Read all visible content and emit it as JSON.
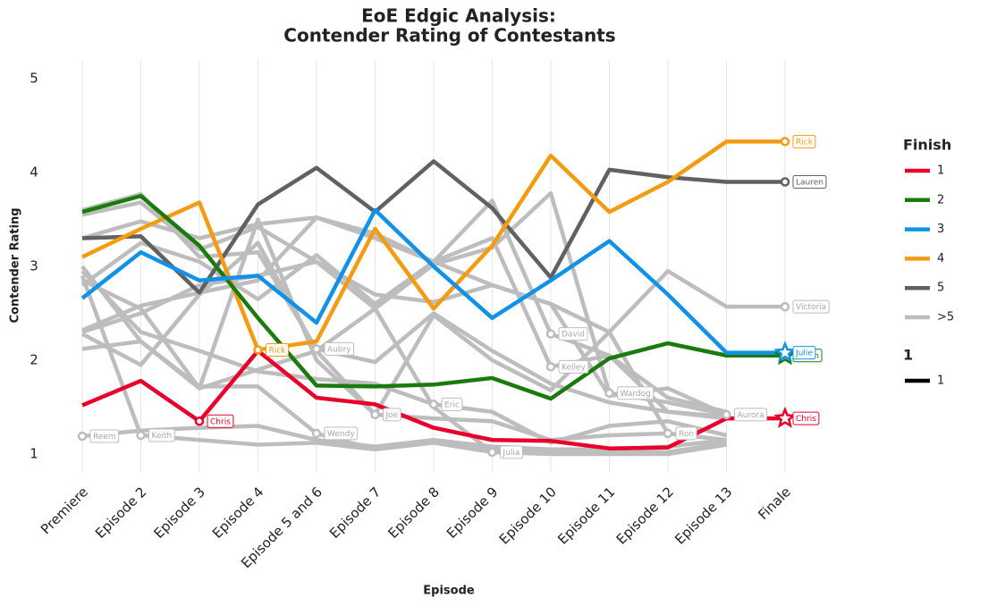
{
  "chart_data": {
    "type": "line",
    "title": [
      "EoE Edgic Analysis:",
      "Contender Rating of Contestants"
    ],
    "x_label": "Episode",
    "y_label": "Contender Rating",
    "categories": [
      "Premiere",
      "Episode 2",
      "Episode 3",
      "Episode 4",
      "Episode 5 and 6",
      "Episode 7",
      "Episode 8",
      "Episode 9",
      "Episode 10",
      "Episode 11",
      "Episode 12",
      "Episode 13",
      "Finale"
    ],
    "ylim": [
      0.8,
      5.2
    ],
    "yticks": [
      1,
      2,
      3,
      4,
      5
    ],
    "grid": true,
    "series": [
      {
        "name": "Reem",
        "color": "#bdbdbd",
        "values": [
          1.19,
          1.25,
          1.28,
          1.3,
          1.15,
          1.08,
          1.15,
          1.08,
          1.05,
          1.05,
          1.08,
          1.15,
          null
        ],
        "labels": [
          "Reem",
          null,
          null,
          null,
          null,
          null,
          null,
          null,
          null,
          null,
          null,
          null,
          null
        ]
      },
      {
        "name": "Keith",
        "color": "#bdbdbd",
        "values": [
          2.9,
          1.2,
          1.15,
          1.1,
          1.12,
          1.05,
          1.15,
          1.05,
          1.03,
          1.03,
          1.02,
          1.1,
          null
        ],
        "labels": [
          null,
          "Keith",
          null,
          null,
          null,
          null,
          null,
          null,
          null,
          null,
          null,
          null,
          null
        ]
      },
      {
        "name": "Aubry",
        "color": "#bdbdbd",
        "values": [
          3.6,
          3.77,
          3.1,
          3.15,
          2.12,
          1.98,
          2.5,
          2.1,
          1.75,
          1.55,
          1.45,
          1.38,
          null
        ],
        "labels": [
          null,
          null,
          null,
          null,
          "Aubry",
          null,
          null,
          null,
          null,
          null,
          null,
          null,
          null
        ]
      },
      {
        "name": "Wendy",
        "color": "#bdbdbd",
        "values": [
          3.0,
          2.2,
          1.72,
          1.72,
          1.22,
          1.05,
          1.12,
          1.02,
          1.02,
          1.02,
          1.02,
          1.12,
          null
        ],
        "labels": [
          null,
          null,
          null,
          null,
          "Wendy",
          null,
          null,
          null,
          null,
          null,
          null,
          null,
          null
        ]
      },
      {
        "name": "Joe",
        "color": "#bdbdbd",
        "values": [
          2.85,
          2.55,
          1.7,
          3.5,
          2.0,
          1.42,
          1.38,
          1.35,
          1.15,
          1.2,
          1.22,
          1.15,
          null
        ],
        "labels": [
          null,
          null,
          null,
          null,
          null,
          "Joe",
          null,
          null,
          null,
          null,
          null,
          null,
          null
        ]
      },
      {
        "name": "Eric",
        "color": "#bdbdbd",
        "values": [
          2.95,
          2.3,
          2.1,
          1.88,
          1.8,
          1.75,
          1.53,
          1.45,
          1.12,
          1.3,
          1.35,
          1.2,
          null
        ],
        "labels": [
          null,
          null,
          null,
          null,
          null,
          null,
          "Eric",
          null,
          null,
          null,
          null,
          null,
          null
        ]
      },
      {
        "name": "Julia",
        "color": "#bdbdbd",
        "values": [
          2.12,
          2.2,
          1.7,
          1.9,
          2.1,
          2.55,
          1.5,
          1.02,
          1.0,
          1.0,
          1.0,
          1.1,
          null
        ],
        "labels": [
          null,
          null,
          null,
          null,
          null,
          null,
          null,
          "Julia",
          null,
          null,
          null,
          null,
          null
        ]
      },
      {
        "name": "David",
        "color": "#bdbdbd",
        "values": [
          3.3,
          3.48,
          3.3,
          3.45,
          3.52,
          3.35,
          3.05,
          3.7,
          2.28,
          2.05,
          1.45,
          1.4,
          null
        ],
        "labels": [
          null,
          null,
          null,
          null,
          null,
          null,
          null,
          null,
          "David",
          null,
          null,
          null,
          null
        ]
      },
      {
        "name": "Kelley",
        "color": "#bdbdbd",
        "values": [
          2.8,
          3.25,
          3.05,
          2.65,
          3.12,
          2.6,
          3.05,
          3.3,
          1.93,
          2.05,
          1.6,
          1.45,
          null
        ],
        "labels": [
          null,
          null,
          null,
          null,
          null,
          null,
          null,
          null,
          "Kelley",
          null,
          null,
          null,
          null
        ]
      },
      {
        "name": "Wardog",
        "color": "#bdbdbd",
        "values": [
          3.55,
          3.68,
          3.18,
          3.42,
          3.05,
          2.55,
          3.02,
          3.2,
          3.78,
          1.65,
          1.55,
          1.42,
          null
        ],
        "labels": [
          null,
          null,
          null,
          null,
          null,
          null,
          null,
          null,
          null,
          "Wardog",
          null,
          null,
          null
        ]
      },
      {
        "name": "Ron",
        "color": "#bdbdbd",
        "values": [
          2.28,
          1.95,
          2.7,
          3.25,
          2.1,
          1.42,
          2.48,
          2.0,
          1.68,
          2.3,
          1.22,
          1.15,
          null
        ],
        "labels": [
          null,
          null,
          null,
          null,
          null,
          null,
          null,
          null,
          null,
          null,
          "Ron",
          null,
          null
        ]
      },
      {
        "name": "Aurora",
        "color": "#bdbdbd",
        "values": [
          2.3,
          2.5,
          2.8,
          2.9,
          3.05,
          2.7,
          2.62,
          2.8,
          2.6,
          1.62,
          1.7,
          1.42,
          null
        ],
        "labels": [
          null,
          null,
          null,
          null,
          null,
          null,
          null,
          null,
          null,
          null,
          null,
          "Aurora",
          null
        ]
      },
      {
        "name": "Victoria",
        "color": "#bdbdbd",
        "values": [
          2.32,
          2.58,
          2.72,
          2.85,
          3.52,
          3.3,
          3.05,
          2.8,
          2.6,
          2.3,
          2.95,
          2.57,
          2.57
        ],
        "labels": [
          null,
          null,
          null,
          null,
          null,
          null,
          null,
          null,
          null,
          null,
          null,
          null,
          "Victoria"
        ]
      },
      {
        "name": "Lauren",
        "color": "#616161",
        "values": [
          3.3,
          3.32,
          2.72,
          3.66,
          4.05,
          3.58,
          4.12,
          3.62,
          2.88,
          4.03,
          3.95,
          3.9,
          3.9
        ],
        "labels": [
          null,
          null,
          null,
          null,
          null,
          null,
          null,
          null,
          null,
          null,
          null,
          null,
          "Lauren"
        ]
      },
      {
        "name": "Rick",
        "color": "#f39c12",
        "values": [
          3.1,
          3.4,
          3.68,
          2.11,
          2.2,
          3.4,
          2.55,
          3.22,
          4.18,
          3.58,
          3.9,
          4.33,
          4.33
        ],
        "labels": [
          null,
          null,
          null,
          "Rick",
          null,
          null,
          null,
          null,
          null,
          null,
          null,
          null,
          "Rick"
        ]
      },
      {
        "name": "Gavin",
        "color": "#1a7a0e",
        "final_marker": "star",
        "values": [
          3.58,
          3.75,
          3.22,
          2.45,
          1.73,
          1.72,
          1.74,
          1.81,
          1.59,
          2.02,
          2.18,
          2.05,
          2.05
        ],
        "labels": [
          null,
          null,
          null,
          null,
          null,
          null,
          null,
          null,
          null,
          null,
          null,
          null,
          "Gavin"
        ]
      },
      {
        "name": "Julie",
        "color": "#1192e8",
        "final_marker": "star",
        "values": [
          2.66,
          3.15,
          2.85,
          2.9,
          2.4,
          3.6,
          3.0,
          2.45,
          2.85,
          3.27,
          2.7,
          2.08,
          2.08
        ],
        "labels": [
          null,
          null,
          null,
          null,
          null,
          null,
          null,
          null,
          null,
          null,
          null,
          null,
          "Julie"
        ]
      },
      {
        "name": "Chris",
        "color": "#e8002a",
        "final_marker": "star",
        "values": [
          1.52,
          1.78,
          1.35,
          2.1,
          1.6,
          1.53,
          1.28,
          1.15,
          1.14,
          1.06,
          1.07,
          1.38,
          1.38
        ],
        "labels": [
          null,
          null,
          "Chris",
          null,
          null,
          null,
          null,
          null,
          null,
          null,
          null,
          null,
          "Chris"
        ]
      }
    ],
    "legend": {
      "title": "Finish",
      "entries": [
        {
          "label": "1",
          "color": "#e8002a"
        },
        {
          "label": "2",
          "color": "#1a7a0e"
        },
        {
          "label": "3",
          "color": "#1192e8"
        },
        {
          "label": "4",
          "color": "#f39c12"
        },
        {
          "label": "5",
          "color": "#616161"
        },
        {
          "label": ">5",
          "color": "#bdbdbd"
        }
      ]
    },
    "size_legend": {
      "title": "1",
      "entries": [
        {
          "label": "1",
          "color": "#000000"
        }
      ]
    }
  }
}
